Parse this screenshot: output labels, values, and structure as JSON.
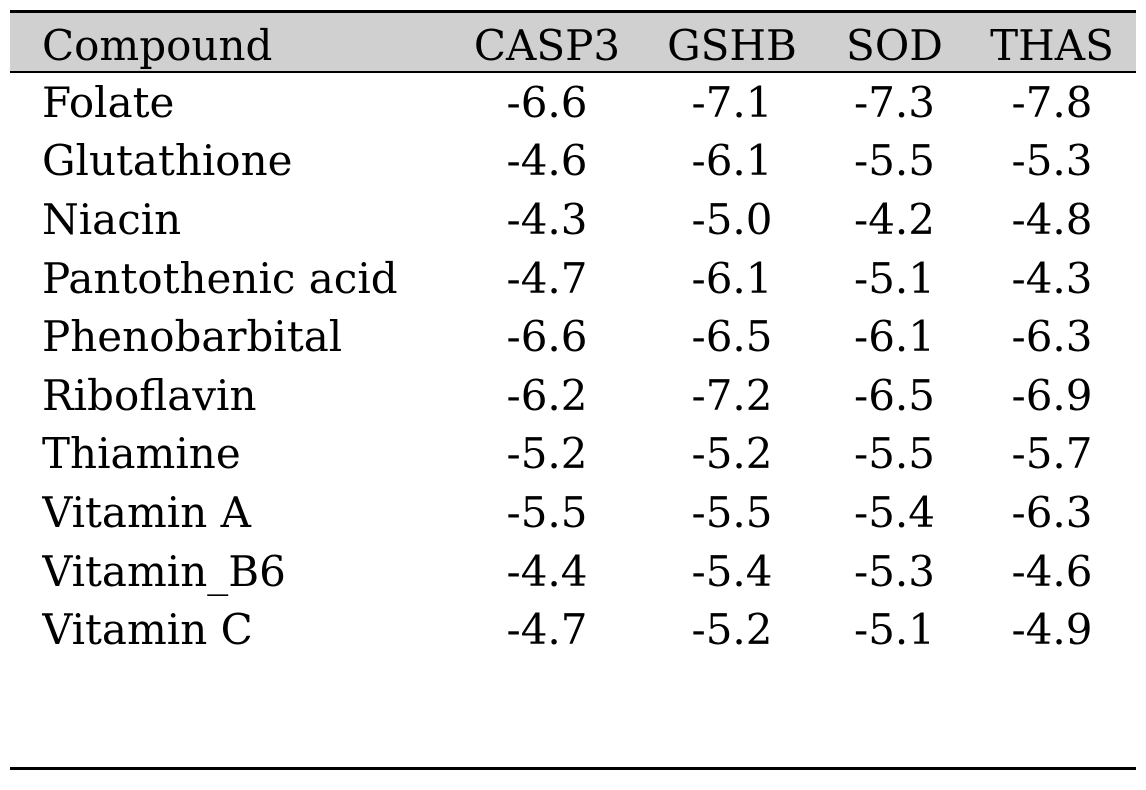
{
  "table": {
    "headers": [
      "Compound",
      "CASP3",
      "GSHB",
      "SOD",
      "THAS"
    ],
    "rows": [
      [
        "Folate",
        "-6.6",
        "-7.1",
        "-7.3",
        "-7.8"
      ],
      [
        "Glutathione",
        "-4.6",
        "-6.1",
        "-5.5",
        "-5.3"
      ],
      [
        "Niacin",
        "-4.3",
        "-5.0",
        "-4.2",
        "-4.8"
      ],
      [
        "Pantothenic acid",
        "-4.7",
        "-6.1",
        "-5.1",
        "-4.3"
      ],
      [
        "Phenobarbital",
        "-6.6",
        "-6.5",
        "-6.1",
        "-6.3"
      ],
      [
        "Riboflavin",
        "-6.2",
        "-7.2",
        "-6.5",
        "-6.9"
      ],
      [
        "Thiamine",
        "-5.2",
        "-5.2",
        "-5.5",
        "-5.7"
      ],
      [
        "Vitamin A",
        "-5.5",
        "-5.5",
        "-5.4",
        "-6.3"
      ],
      [
        "Vitamin_B6",
        "-4.4",
        "-5.4",
        "-5.3",
        "-4.6"
      ],
      [
        "Vitamin C",
        "-4.7",
        "-5.2",
        "-5.1",
        "-4.9"
      ]
    ]
  },
  "colors": {
    "header_background": "#d0d0d0",
    "rule": "#000000",
    "text": "#000000"
  }
}
